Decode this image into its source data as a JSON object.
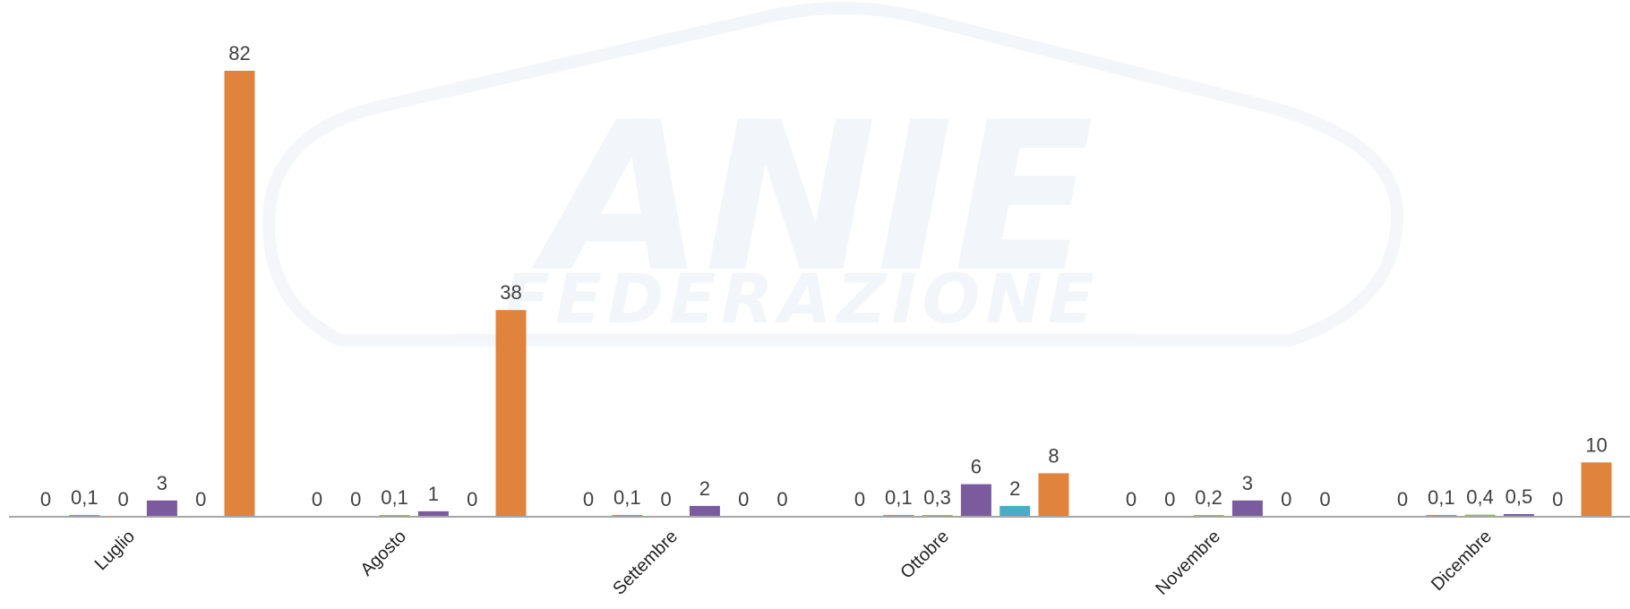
{
  "watermark": {
    "main": "ANIE",
    "sub": "FEDERAZIONE"
  },
  "chart_data": {
    "type": "bar",
    "categories": [
      "Luglio",
      "Agosto",
      "Settembre",
      "Ottobre",
      "Novembre",
      "Dicembre"
    ],
    "series": [
      {
        "color": "#4472c4",
        "values": [
          0,
          0,
          0,
          0,
          0,
          0
        ],
        "labels": [
          "0",
          "0",
          "0",
          "0",
          "0",
          "0"
        ]
      },
      {
        "color": "#ed7d31",
        "values": [
          0.1,
          0,
          0.1,
          0.1,
          0,
          0.1
        ],
        "labels": [
          "0,1",
          "0",
          "0,1",
          "0,1",
          "0",
          "0,1"
        ]
      },
      {
        "color": "#9bbb59",
        "values": [
          0,
          0.1,
          0,
          0.3,
          0.2,
          0.4
        ],
        "labels": [
          "0",
          "0,1",
          "0",
          "0,3",
          "0,2",
          "0,4"
        ]
      },
      {
        "color": "#7a5c9e",
        "values": [
          3,
          1,
          2,
          6,
          3,
          0.5
        ],
        "labels": [
          "3",
          "1",
          "2",
          "6",
          "3",
          "0,5"
        ]
      },
      {
        "color": "#4bacc6",
        "values": [
          0,
          0,
          0,
          2,
          0,
          0
        ],
        "labels": [
          "0",
          "0",
          "0",
          "2",
          "0",
          "0"
        ]
      },
      {
        "color": "#e0843d",
        "values": [
          82,
          38,
          0,
          8,
          0,
          10
        ],
        "labels": [
          "82",
          "38",
          "0",
          "8",
          "0",
          "10"
        ]
      }
    ],
    "ylim": [
      0,
      82
    ],
    "grid": false,
    "legend": "none"
  }
}
